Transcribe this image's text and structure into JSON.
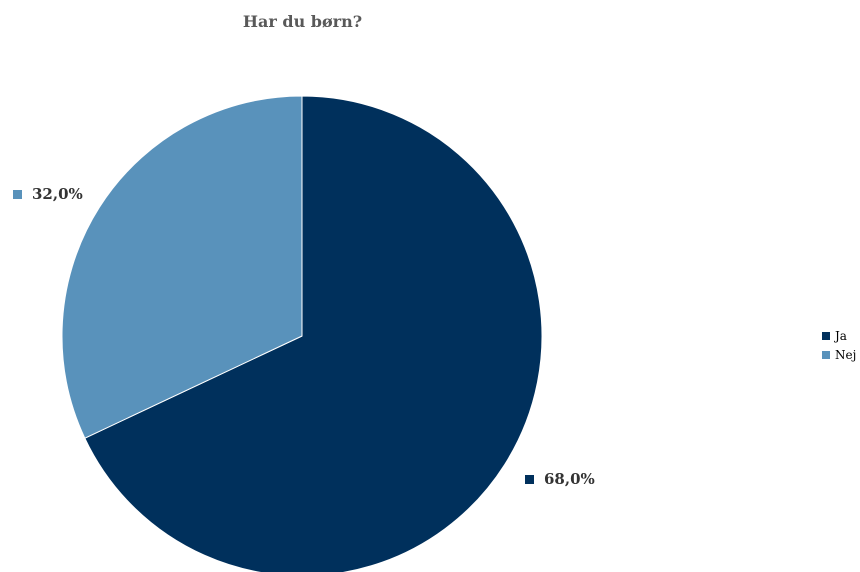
{
  "chart_data": {
    "type": "pie",
    "title": "Har du børn?",
    "categories": [
      "Ja",
      "Nej"
    ],
    "values": [
      68.0,
      32.0
    ],
    "data_labels": [
      "68,0%",
      "32,0%"
    ],
    "colors": [
      "#00305c",
      "#5992bb"
    ],
    "legend_position": "right"
  }
}
